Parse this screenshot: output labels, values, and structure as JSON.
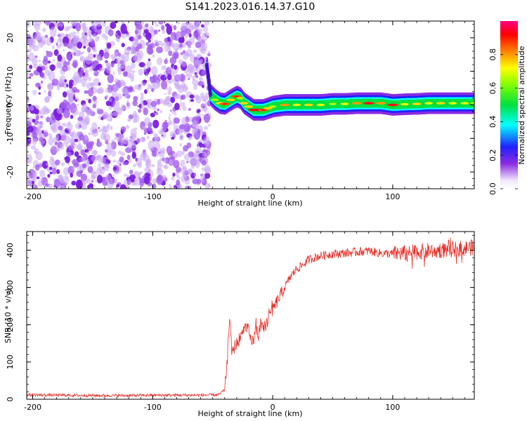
{
  "title": "S141.2023.016.14.37.G10",
  "chart_data": [
    {
      "type": "heatmap",
      "xlabel": "Height of straight line (km)",
      "ylabel": "Frequency (Hz)",
      "xlim": [
        -205,
        168
      ],
      "ylim": [
        -25,
        25
      ],
      "xticks": [
        -200,
        -100,
        0,
        100
      ],
      "xtick_labels": [
        "-200",
        "-100",
        "0",
        "100"
      ],
      "yticks": [
        -20,
        -10,
        0,
        10,
        20
      ],
      "ytick_labels": [
        "-20",
        "-10",
        "0",
        "10",
        "20"
      ],
      "noise_region_x": [
        -205,
        -55
      ],
      "ridge": {
        "x": [
          -55,
          -52,
          -48,
          -44,
          -40,
          -35,
          -30,
          -27,
          -24,
          -20,
          -16,
          -12,
          -8,
          -4,
          0,
          10,
          20,
          30,
          40,
          50,
          60,
          70,
          80,
          90,
          100,
          110,
          120,
          130,
          140,
          150,
          160,
          168
        ],
        "freq": [
          11,
          3,
          1.5,
          0.5,
          0.3,
          1.5,
          2.5,
          2,
          0.5,
          -0.5,
          -1.5,
          -1.5,
          -1.5,
          -1,
          -0.5,
          0,
          0,
          0,
          0,
          0.3,
          0.3,
          0.5,
          0.5,
          0.5,
          0,
          0.2,
          0.3,
          0.5,
          0.5,
          0.5,
          0.5,
          0.5
        ],
        "amplitude": [
          0.3,
          0.5,
          0.7,
          0.8,
          0.9,
          0.8,
          0.9,
          0.7,
          0.8,
          0.8,
          0.95,
          0.95,
          0.9,
          0.8,
          0.7,
          0.85,
          0.75,
          0.8,
          0.75,
          0.7,
          0.75,
          0.85,
          0.95,
          0.85,
          0.95,
          0.75,
          0.8,
          0.75,
          0.8,
          0.75,
          0.75,
          0.7
        ]
      },
      "colorbar": {
        "label": "Normalized spectral amplitude",
        "ticks": [
          0.0,
          0.2,
          0.4,
          0.6,
          0.8
        ],
        "tick_labels": [
          "0.0",
          "0.2",
          "0.4",
          "0.6",
          "0.8"
        ],
        "range": [
          0,
          1
        ]
      }
    },
    {
      "type": "line",
      "xlabel": "Height of straight line (km)",
      "ylabel": "SNR (10 * v/v)",
      "xlim": [
        -205,
        168
      ],
      "ylim": [
        0,
        450
      ],
      "xticks": [
        -200,
        -100,
        0,
        100
      ],
      "xtick_labels": [
        "-200",
        "-100",
        "0",
        "100"
      ],
      "yticks": [
        0,
        100,
        200,
        300,
        400
      ],
      "ytick_labels": [
        "0",
        "100",
        "200",
        "300",
        "400"
      ],
      "series": [
        {
          "color": "#e8302a",
          "x": [
            -205,
            -180,
            -150,
            -120,
            -90,
            -60,
            -45,
            -40,
            -38,
            -36,
            -34,
            -32,
            -30,
            -28,
            -26,
            -24,
            -22,
            -20,
            -18,
            -16,
            -14,
            -12,
            -10,
            -8,
            -6,
            -4,
            -2,
            0,
            5,
            10,
            15,
            20,
            25,
            30,
            35,
            40,
            50,
            60,
            70,
            80,
            90,
            100,
            110,
            120,
            130,
            140,
            150,
            160,
            168
          ],
          "y": [
            12,
            11,
            10,
            10,
            11,
            11,
            12,
            25,
            90,
            230,
            120,
            140,
            150,
            160,
            170,
            185,
            200,
            180,
            150,
            160,
            190,
            170,
            200,
            185,
            200,
            210,
            230,
            240,
            270,
            300,
            330,
            350,
            360,
            375,
            380,
            385,
            390,
            392,
            395,
            398,
            392,
            390,
            392,
            395,
            398,
            400,
            402,
            405,
            408
          ]
        }
      ]
    }
  ],
  "colors": {
    "noise": "#8a2be2",
    "line": "#e8302a"
  }
}
